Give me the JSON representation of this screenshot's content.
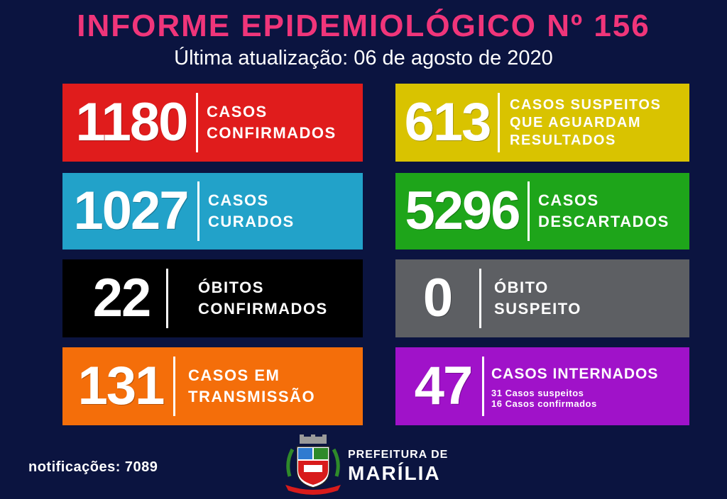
{
  "header": {
    "title": "INFORME EPIDEMIOLÓGICO Nº 156",
    "subtitle": "Última atualização: 06 de agosto de 2020"
  },
  "cards": [
    {
      "number": "1180",
      "line1": "CASOS",
      "line2": "CONFIRMADOS",
      "color": "#e01c1c"
    },
    {
      "number": "613",
      "line1": "CASOS SUSPEITOS",
      "line2": "QUE AGUARDAM",
      "line3": "RESULTADOS",
      "color": "#d9c300"
    },
    {
      "number": "1027",
      "line1": "CASOS",
      "line2": "CURADOS",
      "color": "#22a2c9"
    },
    {
      "number": "5296",
      "line1": "CASOS",
      "line2": "DESCARTADOS",
      "color": "#1ea51a"
    },
    {
      "number": "22",
      "line1": "ÓBITOS",
      "line2": "CONFIRMADOS",
      "color": "#000000"
    },
    {
      "number": "0",
      "line1": "ÓBITO",
      "line2": "SUSPEITO",
      "color": "#5d5f63"
    },
    {
      "number": "131",
      "line1": "CASOS EM",
      "line2": "TRANSMISSÃO",
      "color": "#f46e0a"
    },
    {
      "number": "47",
      "line1": "CASOS INTERNADOS",
      "sub1": "31 Casos suspeitos",
      "sub2": "16 Casos confirmados",
      "color": "#a012c9"
    }
  ],
  "footer": {
    "notifications": "notificações: 7089",
    "pref_line1": "PREFEITURA DE",
    "pref_line2": "MARÍLIA",
    "crest_icon": "city-crest-icon"
  }
}
